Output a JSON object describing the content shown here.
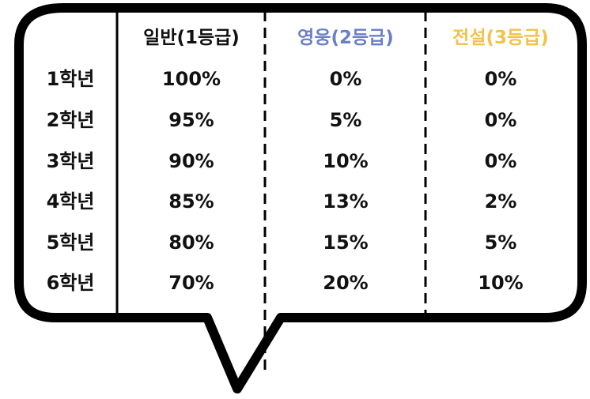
{
  "table": {
    "columns": [
      {
        "label": "일반(1등급)",
        "color": "#111111"
      },
      {
        "label": "영웅(2등급)",
        "color": "#6a7fc6"
      },
      {
        "label": "전설(3등급)",
        "color": "#f2c24a"
      }
    ],
    "rows": [
      {
        "grade": "1학년",
        "values": [
          "100%",
          "0%",
          "0%"
        ]
      },
      {
        "grade": "2학년",
        "values": [
          "95%",
          "5%",
          "0%"
        ]
      },
      {
        "grade": "3학년",
        "values": [
          "90%",
          "10%",
          "0%"
        ]
      },
      {
        "grade": "4학년",
        "values": [
          "85%",
          "13%",
          "2%"
        ]
      },
      {
        "grade": "5학년",
        "values": [
          "80%",
          "15%",
          "5%"
        ]
      },
      {
        "grade": "6학년",
        "values": [
          "70%",
          "20%",
          "10%"
        ]
      }
    ]
  },
  "style": {
    "outline_color": "#000000",
    "background": "#ffffff"
  }
}
